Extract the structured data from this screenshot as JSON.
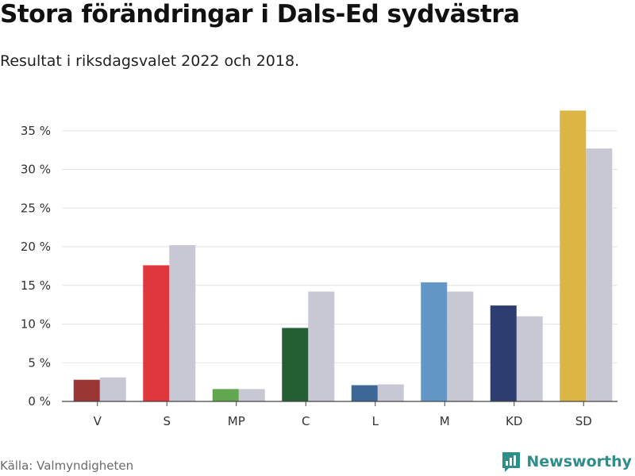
{
  "header": {
    "title": "Stora förändringar i Dals-Ed sydvästra",
    "subtitle": "Resultat i riksdagsvalet 2022 och 2018."
  },
  "footer": {
    "source": "Källa: Valmyndigheten",
    "brand": "Newsworthy",
    "brand_icon": "bar-chart-logo-icon",
    "brand_color": "#2f8e8a"
  },
  "chart_data": {
    "type": "bar",
    "title": "Stora förändringar i Dals-Ed sydvästra",
    "subtitle": "Resultat i riksdagsvalet 2022 och 2018.",
    "xlabel": "",
    "ylabel": "",
    "ylim": [
      0,
      37.5
    ],
    "yticks": [
      0,
      5,
      10,
      15,
      20,
      25,
      30,
      35
    ],
    "ytick_labels": [
      "0 %",
      "5 %",
      "10 %",
      "15 %",
      "20 %",
      "25 %",
      "30 %",
      "35 %"
    ],
    "grid": true,
    "legend": "none",
    "categories": [
      "V",
      "S",
      "MP",
      "C",
      "L",
      "M",
      "KD",
      "SD"
    ],
    "colors_2022": [
      "#9a3633",
      "#e0363e",
      "#62a650",
      "#245f34",
      "#3d6797",
      "#6398c6",
      "#2e3d70",
      "#dcb545"
    ],
    "color_2018": "#c8c8d4",
    "series": [
      {
        "values": [
          2.8,
          17.6,
          1.6,
          9.5,
          2.1,
          15.4,
          12.4,
          37.6
        ]
      },
      {
        "values": [
          3.1,
          20.2,
          1.6,
          14.2,
          2.2,
          14.2,
          11.0,
          32.7
        ]
      }
    ]
  }
}
